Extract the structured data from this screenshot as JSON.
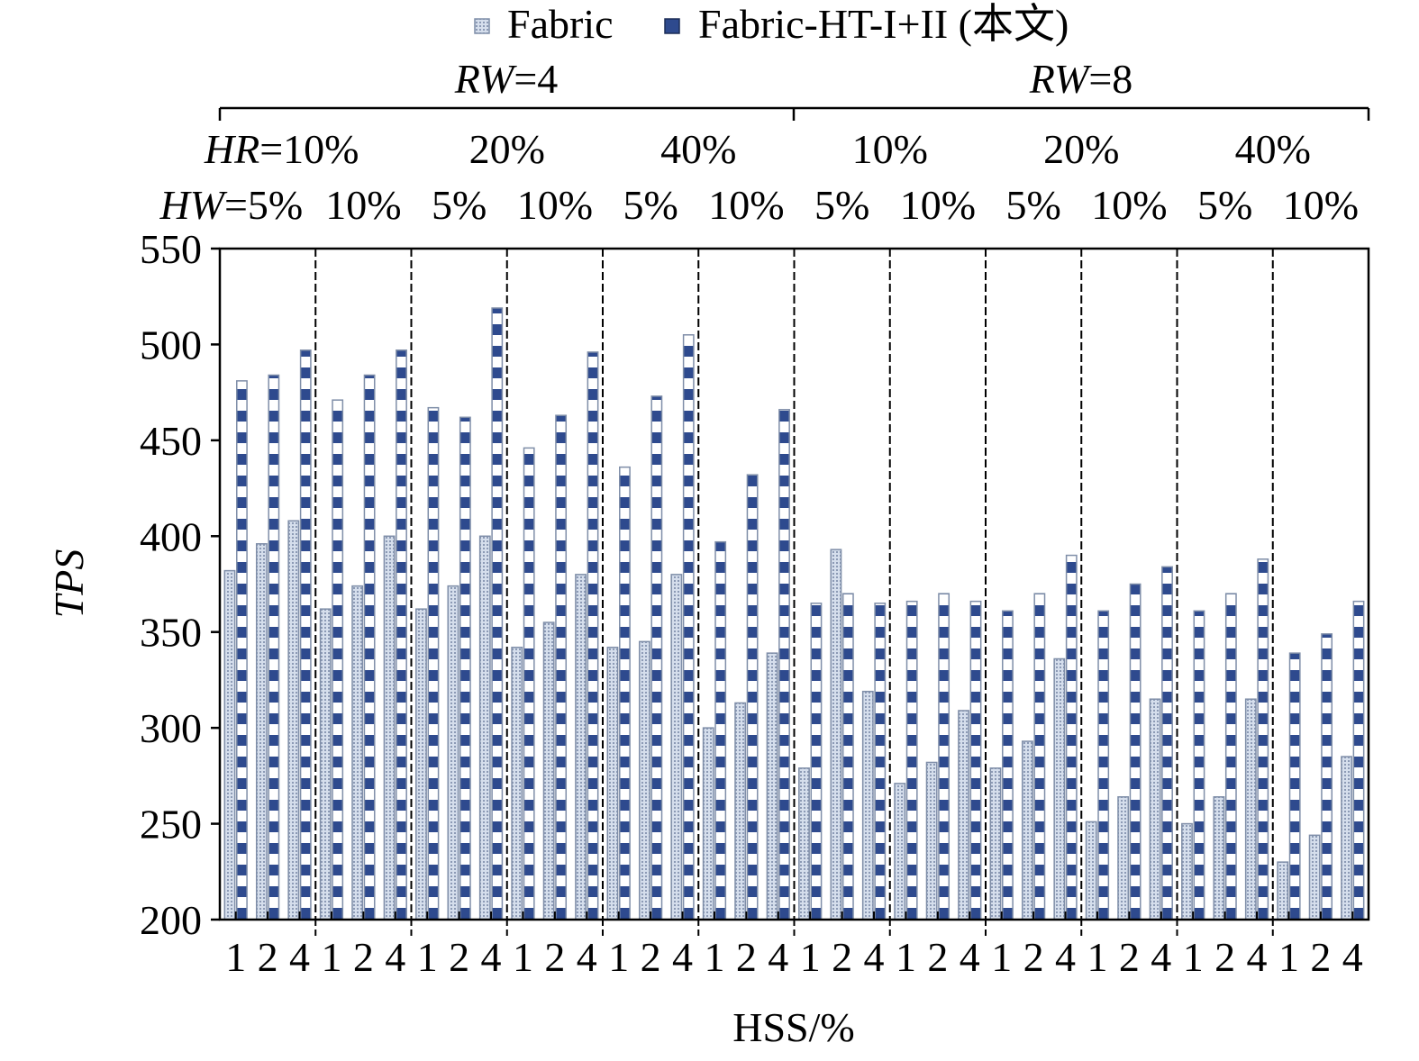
{
  "chart_data": {
    "type": "bar",
    "title": "",
    "xlabel": "HSS/%",
    "ylabel": "TPS",
    "ylim": [
      200,
      550
    ],
    "yticks": [
      "200",
      "250",
      "300",
      "350",
      "400",
      "450",
      "500",
      "550"
    ],
    "legend": {
      "placement": "top",
      "items": [
        "Fabric",
        "Fabric-HT-I+II (本文)"
      ]
    },
    "colors": {
      "fabric_fill": "#c9d4e5",
      "fabric_stroke": "#7f8ea8",
      "ht_fill": "#2e4a8e",
      "ht_light": "#e8eef8"
    },
    "headers": {
      "rw": [
        {
          "prefix": "RW",
          "suffix": "=4"
        },
        {
          "prefix": "RW",
          "suffix": "=8"
        }
      ],
      "hr": [
        {
          "prefix": "HR",
          "value": "=10%"
        },
        {
          "prefix": "",
          "value": "20%"
        },
        {
          "prefix": "",
          "value": "40%"
        },
        {
          "prefix": "",
          "value": "10%"
        },
        {
          "prefix": "",
          "value": "20%"
        },
        {
          "prefix": "",
          "value": "40%"
        }
      ],
      "hw": [
        {
          "prefix": "HW",
          "value": "=5%"
        },
        {
          "prefix": "",
          "value": "10%"
        },
        {
          "prefix": "",
          "value": "5%"
        },
        {
          "prefix": "",
          "value": "10%"
        },
        {
          "prefix": "",
          "value": "5%"
        },
        {
          "prefix": "",
          "value": "10%"
        },
        {
          "prefix": "",
          "value": "5%"
        },
        {
          "prefix": "",
          "value": "10%"
        },
        {
          "prefix": "",
          "value": "5%"
        },
        {
          "prefix": "",
          "value": "10%"
        },
        {
          "prefix": "",
          "value": "5%"
        },
        {
          "prefix": "",
          "value": "10%"
        }
      ]
    },
    "categories": [
      "1",
      "2",
      "4",
      "1",
      "2",
      "4",
      "1",
      "2",
      "4",
      "1",
      "2",
      "4",
      "1",
      "2",
      "4",
      "1",
      "2",
      "4",
      "1",
      "2",
      "4",
      "1",
      "2",
      "4",
      "1",
      "2",
      "4",
      "1",
      "2",
      "4",
      "1",
      "2",
      "4",
      "1",
      "2",
      "4"
    ],
    "series": [
      {
        "name": "Fabric",
        "values": [
          382,
          396,
          408,
          362,
          374,
          400,
          362,
          374,
          400,
          342,
          355,
          380,
          342,
          345,
          380,
          300,
          313,
          339,
          279,
          393,
          319,
          271,
          282,
          309,
          279,
          293,
          336,
          251,
          264,
          315,
          250,
          264,
          315,
          230,
          244,
          285
        ]
      },
      {
        "name": "Fabric-HT-I+II (本文)",
        "values": [
          481,
          484,
          497,
          471,
          484,
          497,
          467,
          462,
          519,
          446,
          463,
          496,
          436,
          473,
          505,
          397,
          432,
          466,
          365,
          370,
          365,
          366,
          370,
          366,
          361,
          370,
          390,
          361,
          375,
          384,
          361,
          370,
          388,
          339,
          349,
          366
        ]
      }
    ]
  }
}
